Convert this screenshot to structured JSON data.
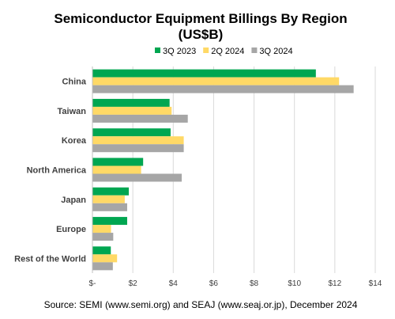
{
  "chart_data": {
    "type": "bar",
    "orientation": "horizontal",
    "title": "Semiconductor Equipment Billings By Region",
    "subtitle": "(US$B)",
    "categories": [
      "China",
      "Taiwan",
      "Korea",
      "North America",
      "Japan",
      "Europe",
      "Rest of the World"
    ],
    "series": [
      {
        "name": "3Q 2023",
        "color": "#00a651",
        "values": [
          11.06,
          3.82,
          3.87,
          2.51,
          1.8,
          1.72,
          0.91
        ]
      },
      {
        "name": "2Q 2024",
        "color": "#ffd966",
        "values": [
          12.21,
          3.92,
          4.52,
          2.41,
          1.6,
          0.92,
          1.22
        ]
      },
      {
        "name": "3Q 2024",
        "color": "#a6a6a6",
        "values": [
          12.93,
          4.72,
          4.52,
          4.42,
          1.72,
          1.03,
          1.01
        ]
      }
    ],
    "xlim": [
      0,
      14
    ],
    "ticks": [
      0,
      2,
      4,
      6,
      8,
      10,
      12,
      14
    ],
    "tick_labels": [
      "$-",
      "$2",
      "$4",
      "$6",
      "$8",
      "$10",
      "$12",
      "$14"
    ],
    "grid": true,
    "legend_position": "top"
  },
  "source": "Source: SEMI (www.semi.org) and SEAJ (www.seaj.or.jp), December 2024"
}
